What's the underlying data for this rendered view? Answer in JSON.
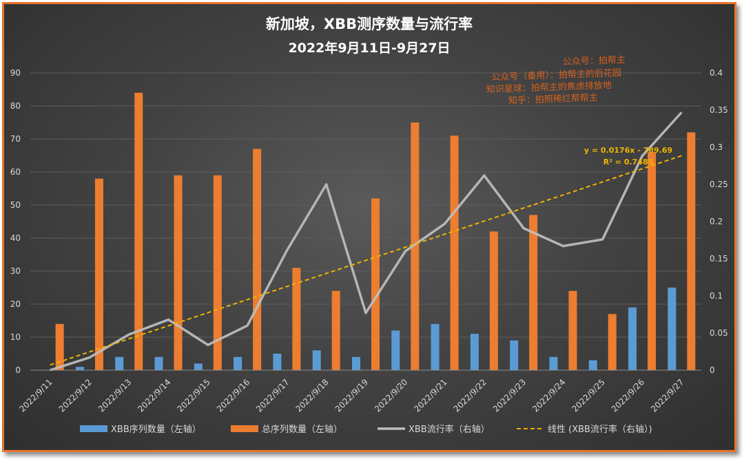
{
  "chart_data": {
    "type": "bar",
    "title": "新加坡，XBB测序数量与流行率",
    "subtitle": "2022年9月11日-9月27日",
    "categories": [
      "2022/9/11",
      "2022/9/12",
      "2022/9/13",
      "2022/9/14",
      "2022/9/15",
      "2022/9/16",
      "2022/9/17",
      "2022/9/18",
      "2022/9/19",
      "2022/9/20",
      "2022/9/21",
      "2022/9/22",
      "2022/9/23",
      "2022/9/24",
      "2022/9/25",
      "2022/9/26",
      "2022/9/27"
    ],
    "series": [
      {
        "name": "XBB序列数量（左轴）",
        "type": "bar",
        "axis": "left",
        "color": "#5b9bd5",
        "values": [
          0,
          1,
          4,
          4,
          2,
          4,
          5,
          6,
          4,
          12,
          14,
          11,
          9,
          4,
          3,
          19,
          25
        ]
      },
      {
        "name": "总序列数量（左轴）",
        "type": "bar",
        "axis": "left",
        "color": "#ed7d31",
        "values": [
          14,
          58,
          84,
          59,
          59,
          67,
          31,
          24,
          52,
          75,
          71,
          42,
          47,
          24,
          17,
          66,
          72
        ]
      },
      {
        "name": "XBB流行率（右轴）",
        "type": "line",
        "axis": "right",
        "color": "#bfbfbf",
        "values": [
          0,
          0.017,
          0.048,
          0.068,
          0.034,
          0.06,
          0.161,
          0.25,
          0.077,
          0.16,
          0.197,
          0.262,
          0.191,
          0.167,
          0.176,
          0.288,
          0.347
        ]
      },
      {
        "name": "线性 (XBB流行率（右轴）)",
        "type": "trendline",
        "axis": "right",
        "color": "#f0b400",
        "values": [
          0.007,
          0.0246,
          0.0422,
          0.0598,
          0.0774,
          0.095,
          0.1126,
          0.1302,
          0.1478,
          0.1654,
          0.183,
          0.2006,
          0.2182,
          0.2358,
          0.2534,
          0.271,
          0.2886
        ]
      }
    ],
    "y_left": {
      "min": 0,
      "max": 90,
      "ticks": [
        "0",
        "10",
        "20",
        "30",
        "40",
        "50",
        "60",
        "70",
        "80",
        "90"
      ]
    },
    "y_right": {
      "min": 0,
      "max": 0.4,
      "ticks": [
        "0",
        "0.05",
        "0.1",
        "0.15",
        "0.2",
        "0.25",
        "0.3",
        "0.35",
        "0.4"
      ]
    },
    "trendline_equation": "y = 0.0176x - 789.69",
    "trendline_r2": "R² = 0.7485",
    "grid": true,
    "legend_position": "bottom"
  },
  "watermark": [
    "公众号：拍帮主",
    "公众号（备用）：拍帮主的后花园",
    "知识星球：拍帮主的焦虑排放地",
    "知乎：拍照稀烂帮帮主"
  ],
  "colors": {
    "frame": "#e8742a",
    "background": "#3d3d3d",
    "grid": "#5e5e5e"
  }
}
